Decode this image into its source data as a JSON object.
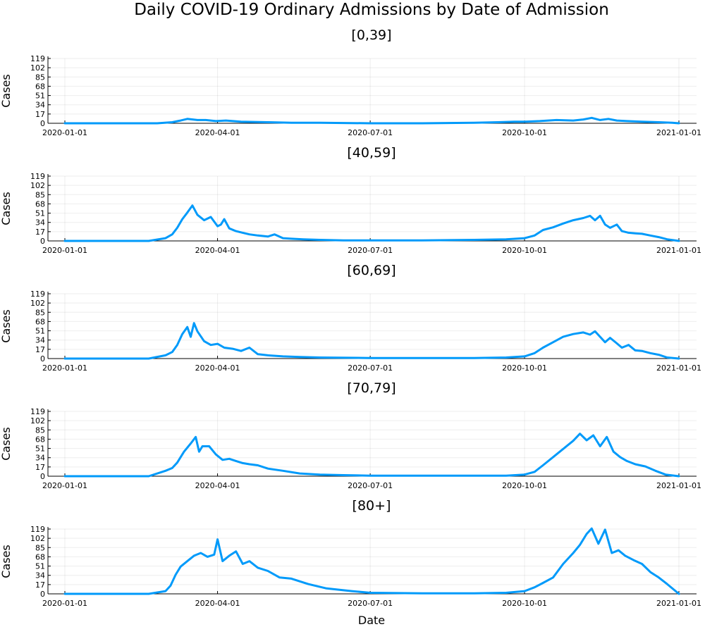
{
  "chart_data": {
    "type": "line",
    "title": "Daily COVID-19 Ordinary Admissions by Date of Admission",
    "xlabel": "Date",
    "ylabel": "Cases",
    "xlim": [
      "2020-01-01",
      "2021-01-01"
    ],
    "ylim": [
      0,
      119
    ],
    "xticks": [
      "2020-01-01",
      "2020-04-01",
      "2020-07-01",
      "2020-10-01",
      "2021-01-01"
    ],
    "yticks": [
      0,
      17,
      34,
      51,
      68,
      85,
      102,
      119
    ],
    "grid": true,
    "legend": "none",
    "color": "#009AFA",
    "panels": [
      {
        "title": "[0,39]",
        "series": {
          "x": [
            "2020-01-01",
            "2020-02-25",
            "2020-03-05",
            "2020-03-10",
            "2020-03-14",
            "2020-03-20",
            "2020-03-25",
            "2020-03-31",
            "2020-04-06",
            "2020-04-15",
            "2020-05-01",
            "2020-05-15",
            "2020-06-01",
            "2020-07-01",
            "2020-08-01",
            "2020-09-01",
            "2020-09-15",
            "2020-09-25",
            "2020-10-01",
            "2020-10-10",
            "2020-10-20",
            "2020-10-30",
            "2020-11-05",
            "2020-11-10",
            "2020-11-15",
            "2020-11-20",
            "2020-11-25",
            "2020-12-01",
            "2020-12-10",
            "2020-12-20",
            "2020-12-28",
            "2021-01-01"
          ],
          "y": [
            0,
            0,
            2,
            5,
            8,
            6,
            6,
            4,
            5,
            3,
            2,
            1,
            1,
            0,
            0,
            1,
            2,
            3,
            3,
            4,
            6,
            5,
            7,
            10,
            6,
            8,
            5,
            4,
            3,
            2,
            1,
            0
          ]
        }
      },
      {
        "title": "[40,59]",
        "series": {
          "x": [
            "2020-01-01",
            "2020-02-20",
            "2020-03-01",
            "2020-03-05",
            "2020-03-08",
            "2020-03-11",
            "2020-03-14",
            "2020-03-17",
            "2020-03-20",
            "2020-03-24",
            "2020-03-28",
            "2020-04-01",
            "2020-04-03",
            "2020-04-05",
            "2020-04-08",
            "2020-04-12",
            "2020-04-16",
            "2020-04-20",
            "2020-04-25",
            "2020-05-01",
            "2020-05-05",
            "2020-05-10",
            "2020-05-15",
            "2020-05-22",
            "2020-06-01",
            "2020-06-15",
            "2020-07-01",
            "2020-08-01",
            "2020-09-01",
            "2020-09-20",
            "2020-10-01",
            "2020-10-07",
            "2020-10-12",
            "2020-10-18",
            "2020-10-24",
            "2020-10-30",
            "2020-11-05",
            "2020-11-09",
            "2020-11-12",
            "2020-11-15",
            "2020-11-18",
            "2020-11-21",
            "2020-11-25",
            "2020-11-28",
            "2020-12-02",
            "2020-12-06",
            "2020-12-10",
            "2020-12-15",
            "2020-12-20",
            "2020-12-25",
            "2021-01-01"
          ],
          "y": [
            0,
            0,
            5,
            12,
            24,
            40,
            52,
            65,
            48,
            38,
            44,
            27,
            30,
            40,
            23,
            18,
            15,
            12,
            10,
            8,
            12,
            5,
            4,
            3,
            2,
            1,
            1,
            1,
            2,
            3,
            5,
            10,
            20,
            25,
            32,
            38,
            42,
            46,
            38,
            46,
            30,
            24,
            30,
            18,
            15,
            14,
            13,
            10,
            7,
            3,
            0
          ]
        }
      },
      {
        "title": "[60,69]",
        "series": {
          "x": [
            "2020-01-01",
            "2020-02-20",
            "2020-03-01",
            "2020-03-05",
            "2020-03-08",
            "2020-03-11",
            "2020-03-14",
            "2020-03-16",
            "2020-03-18",
            "2020-03-20",
            "2020-03-24",
            "2020-03-28",
            "2020-04-01",
            "2020-04-05",
            "2020-04-10",
            "2020-04-15",
            "2020-04-20",
            "2020-04-25",
            "2020-05-01",
            "2020-05-10",
            "2020-05-20",
            "2020-06-01",
            "2020-07-01",
            "2020-08-01",
            "2020-09-01",
            "2020-09-20",
            "2020-10-01",
            "2020-10-07",
            "2020-10-12",
            "2020-10-18",
            "2020-10-24",
            "2020-10-30",
            "2020-11-05",
            "2020-11-09",
            "2020-11-12",
            "2020-11-15",
            "2020-11-18",
            "2020-11-21",
            "2020-11-25",
            "2020-11-28",
            "2020-12-02",
            "2020-12-06",
            "2020-12-10",
            "2020-12-15",
            "2020-12-20",
            "2020-12-25",
            "2021-01-01"
          ],
          "y": [
            0,
            0,
            6,
            12,
            25,
            45,
            58,
            40,
            65,
            50,
            32,
            25,
            27,
            20,
            18,
            14,
            20,
            8,
            6,
            4,
            3,
            2,
            1,
            1,
            1,
            2,
            4,
            10,
            20,
            30,
            40,
            45,
            48,
            44,
            50,
            40,
            30,
            38,
            28,
            20,
            25,
            15,
            14,
            10,
            7,
            2,
            0
          ]
        }
      },
      {
        "title": "[70,79]",
        "series": {
          "x": [
            "2020-01-01",
            "2020-02-20",
            "2020-03-01",
            "2020-03-05",
            "2020-03-08",
            "2020-03-12",
            "2020-03-16",
            "2020-03-19",
            "2020-03-21",
            "2020-03-23",
            "2020-03-27",
            "2020-03-31",
            "2020-04-04",
            "2020-04-08",
            "2020-04-12",
            "2020-04-16",
            "2020-04-20",
            "2020-04-25",
            "2020-05-01",
            "2020-05-10",
            "2020-05-20",
            "2020-06-01",
            "2020-06-15",
            "2020-07-01",
            "2020-08-01",
            "2020-09-01",
            "2020-09-20",
            "2020-10-01",
            "2020-10-07",
            "2020-10-12",
            "2020-10-18",
            "2020-10-24",
            "2020-10-30",
            "2020-11-03",
            "2020-11-07",
            "2020-11-11",
            "2020-11-15",
            "2020-11-19",
            "2020-11-23",
            "2020-11-27",
            "2020-12-01",
            "2020-12-06",
            "2020-12-12",
            "2020-12-18",
            "2020-12-24",
            "2021-01-01"
          ],
          "y": [
            0,
            0,
            10,
            15,
            25,
            45,
            60,
            72,
            45,
            55,
            55,
            40,
            30,
            32,
            28,
            24,
            22,
            20,
            14,
            10,
            5,
            3,
            2,
            1,
            1,
            1,
            1,
            3,
            8,
            20,
            35,
            50,
            65,
            78,
            66,
            75,
            55,
            72,
            45,
            35,
            28,
            22,
            18,
            10,
            3,
            0
          ]
        }
      },
      {
        "title": "[80+]",
        "series": {
          "x": [
            "2020-01-01",
            "2020-02-20",
            "2020-03-01",
            "2020-03-04",
            "2020-03-07",
            "2020-03-10",
            "2020-03-14",
            "2020-03-18",
            "2020-03-22",
            "2020-03-26",
            "2020-03-30",
            "2020-04-01",
            "2020-04-04",
            "2020-04-08",
            "2020-04-12",
            "2020-04-16",
            "2020-04-20",
            "2020-04-25",
            "2020-05-01",
            "2020-05-08",
            "2020-05-15",
            "2020-05-25",
            "2020-06-05",
            "2020-06-20",
            "2020-07-01",
            "2020-08-01",
            "2020-09-01",
            "2020-09-20",
            "2020-10-01",
            "2020-10-07",
            "2020-10-12",
            "2020-10-18",
            "2020-10-24",
            "2020-10-30",
            "2020-11-03",
            "2020-11-07",
            "2020-11-10",
            "2020-11-14",
            "2020-11-18",
            "2020-11-22",
            "2020-11-26",
            "2020-11-30",
            "2020-12-05",
            "2020-12-10",
            "2020-12-15",
            "2020-12-20",
            "2020-12-25",
            "2021-01-01"
          ],
          "y": [
            0,
            0,
            5,
            15,
            35,
            50,
            60,
            70,
            75,
            68,
            72,
            100,
            60,
            70,
            78,
            55,
            60,
            48,
            42,
            30,
            28,
            18,
            10,
            5,
            2,
            1,
            1,
            2,
            5,
            12,
            20,
            30,
            55,
            75,
            90,
            110,
            120,
            92,
            118,
            75,
            80,
            70,
            62,
            55,
            40,
            30,
            18,
            0
          ]
        }
      }
    ]
  }
}
